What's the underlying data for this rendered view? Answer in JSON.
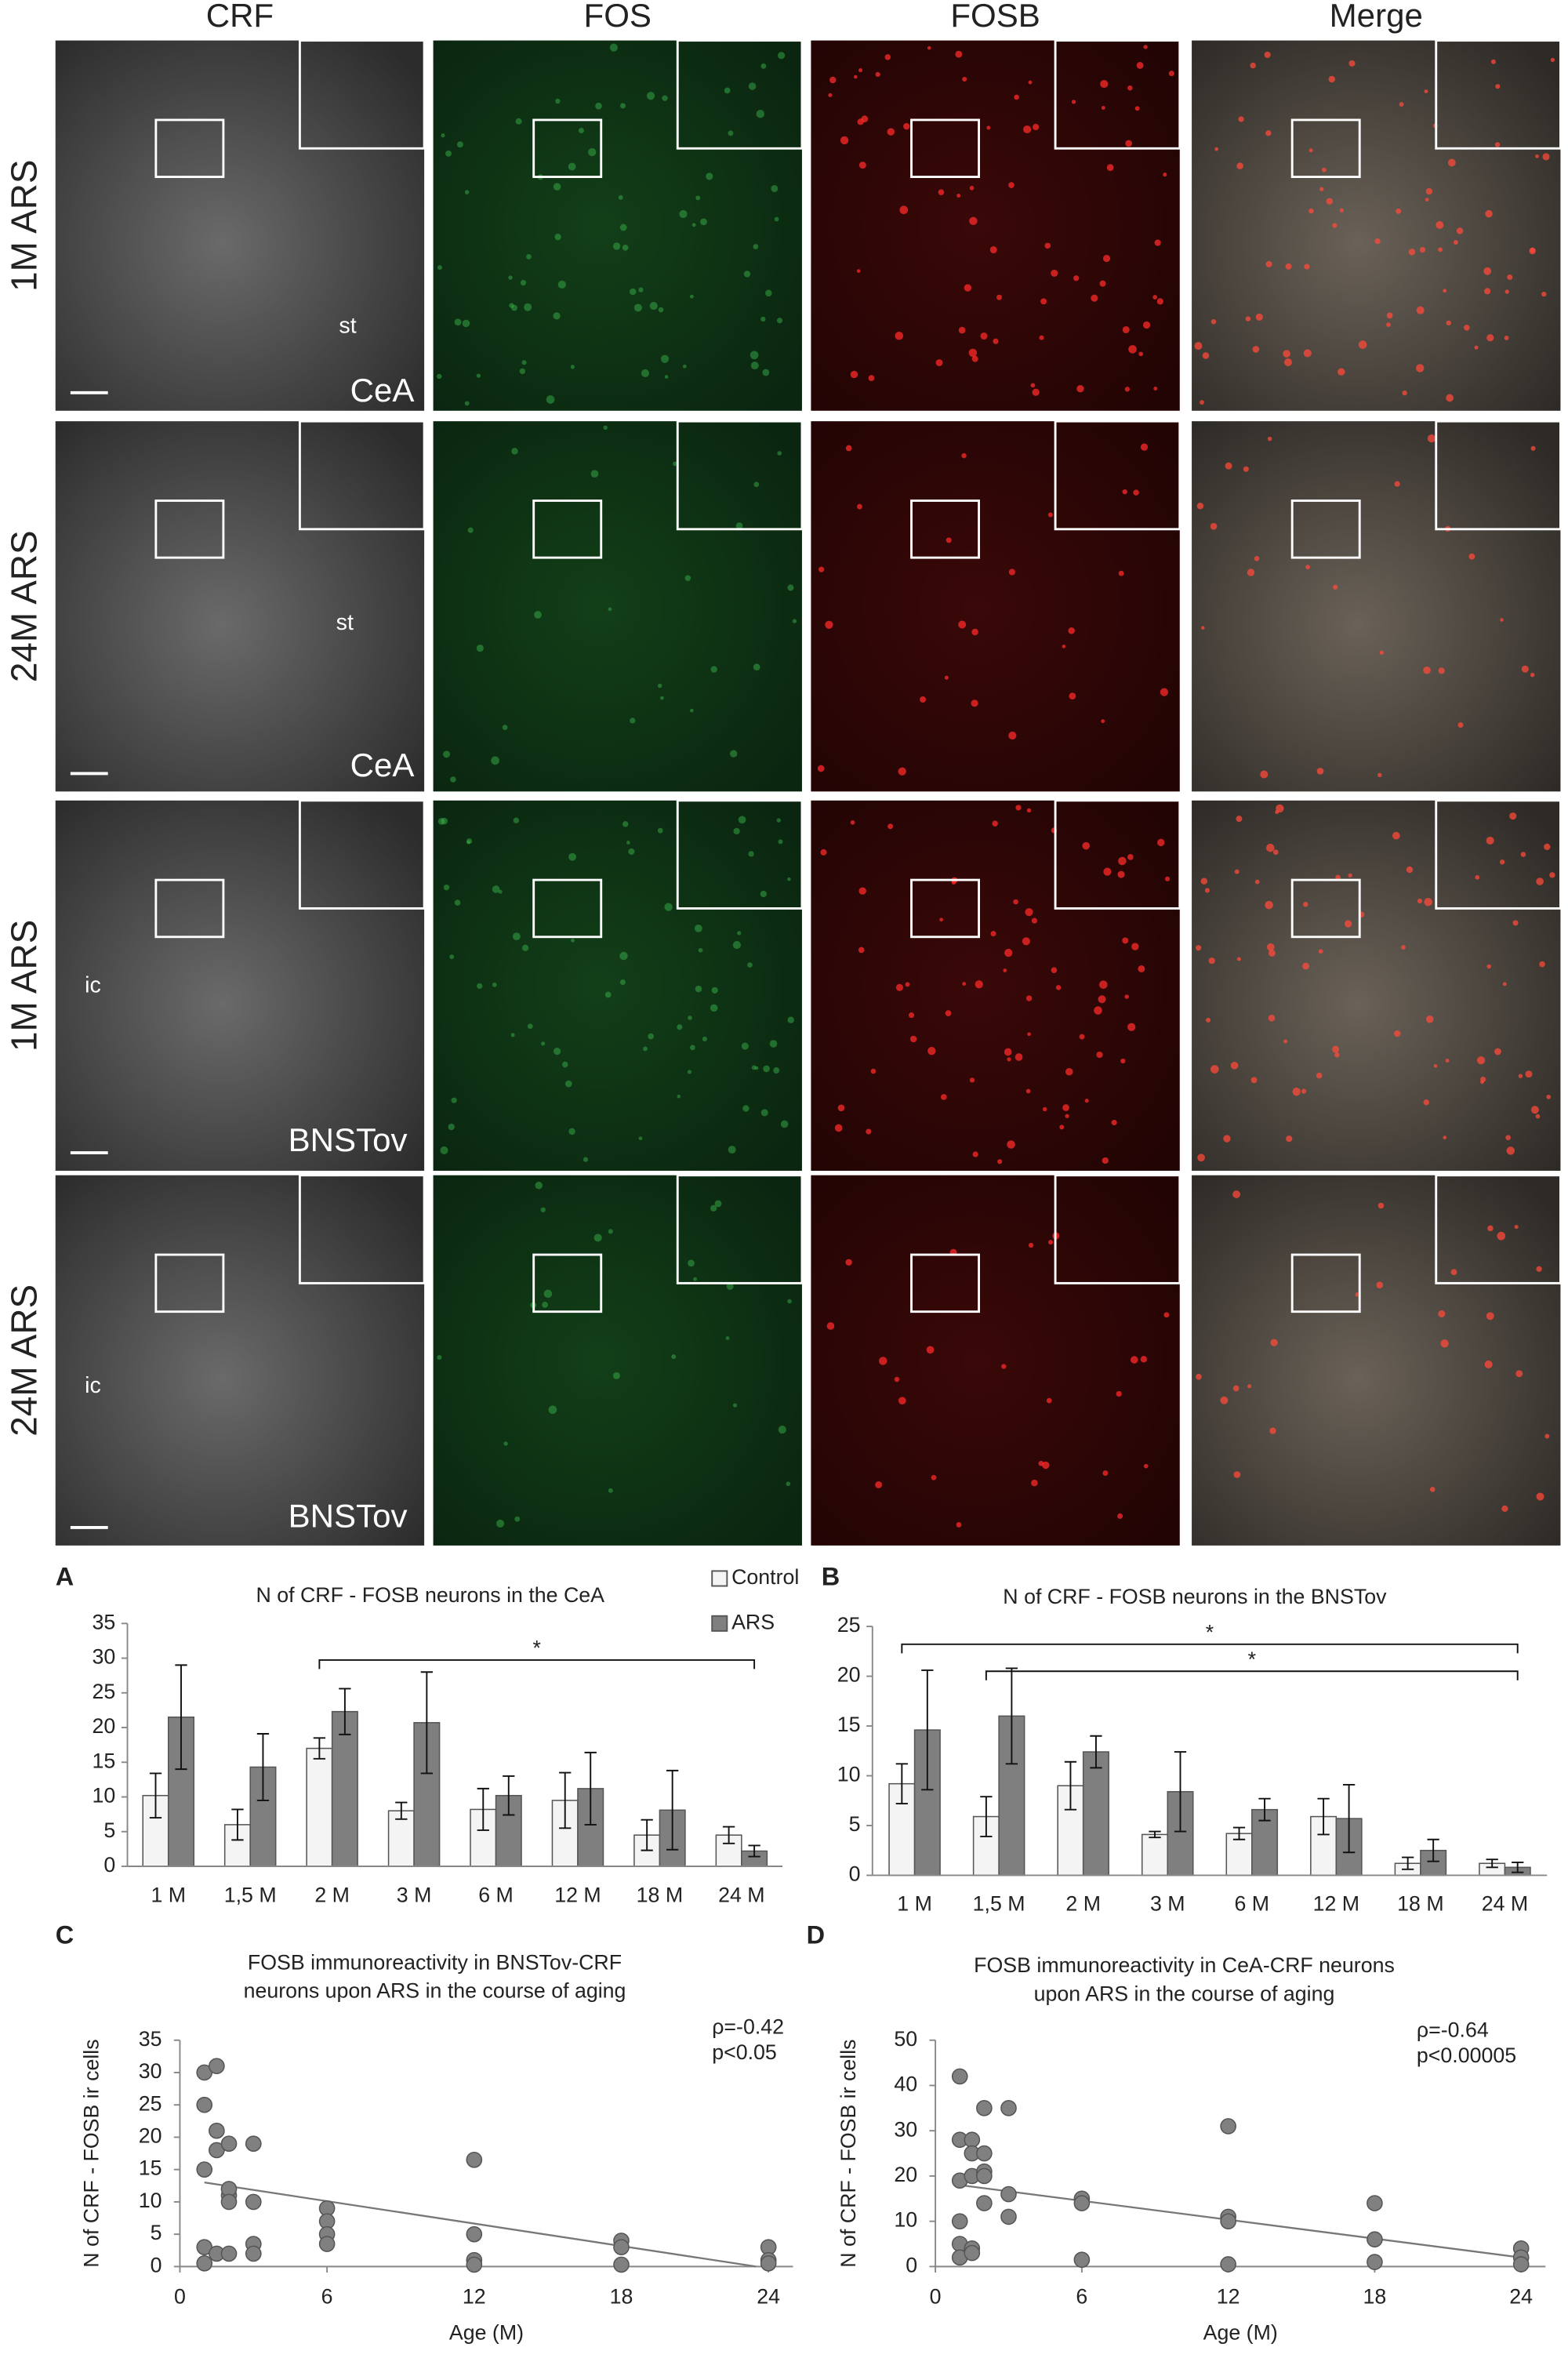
{
  "micrographs": {
    "columns": [
      "CRF",
      "FOS",
      "FOSB",
      "Merge"
    ],
    "rows": [
      "1M ARS",
      "24M ARS",
      "1M ARS",
      "24M ARS"
    ],
    "panel_labels": [
      [
        "st",
        "CeA"
      ],
      [
        "st",
        "CeA"
      ],
      [
        "ic",
        "BNSTov"
      ],
      [
        "ic",
        "BNSTov"
      ]
    ]
  },
  "chart_data": [
    {
      "type": "bar",
      "panel": "A",
      "title": "N of CRF - FOSB neurons in the CeA",
      "categories": [
        "1 M",
        "1,5 M",
        "2 M",
        "3 M",
        "6 M",
        "12 M",
        "18 M",
        "24 M"
      ],
      "series": [
        {
          "name": "Control",
          "color": "#f4f4f4",
          "values": [
            10.2,
            6,
            17,
            8,
            8.2,
            9.5,
            4.5,
            4.5
          ],
          "errors": [
            3.2,
            2.2,
            1.5,
            1.2,
            3,
            4,
            2.2,
            1.2
          ]
        },
        {
          "name": "ARS",
          "color": "#7f7f7f",
          "values": [
            21.5,
            14.3,
            22.3,
            20.7,
            10.2,
            11.2,
            8.1,
            2.2
          ],
          "errors": [
            7.5,
            4.8,
            3.3,
            7.3,
            2.8,
            5.2,
            5.7,
            0.8
          ]
        }
      ],
      "ylim": [
        0,
        35
      ],
      "yticks": [
        0,
        5,
        10,
        15,
        20,
        25,
        30,
        35
      ],
      "legend": true,
      "significance": [
        {
          "text": "*",
          "from": "2 M",
          "to": "24 M"
        }
      ]
    },
    {
      "type": "bar",
      "panel": "B",
      "title": "N of CRF - FOSB neurons in the BNSTov",
      "categories": [
        "1 M",
        "1,5 M",
        "2 M",
        "3 M",
        "6 M",
        "12 M",
        "18 M",
        "24 M"
      ],
      "series": [
        {
          "name": "Control",
          "color": "#f4f4f4",
          "values": [
            9.2,
            5.9,
            9,
            4.1,
            4.2,
            5.9,
            1.2,
            1.2
          ],
          "errors": [
            2,
            2,
            2.4,
            0.3,
            0.6,
            1.8,
            0.6,
            0.4
          ]
        },
        {
          "name": "ARS",
          "color": "#7f7f7f",
          "values": [
            14.6,
            16,
            12.4,
            8.4,
            6.6,
            5.7,
            2.5,
            0.8
          ],
          "errors": [
            6,
            4.8,
            1.6,
            4,
            1.1,
            3.4,
            1.1,
            0.5
          ]
        }
      ],
      "ylim": [
        0,
        25
      ],
      "yticks": [
        0,
        5,
        10,
        15,
        20,
        25
      ],
      "legend": false,
      "significance": [
        {
          "text": "*",
          "from": "1 M",
          "to": "24 M"
        },
        {
          "text": "*",
          "from": "1,5 M",
          "to": "24 M"
        }
      ]
    },
    {
      "type": "scatter",
      "panel": "C",
      "title": [
        "FOSB immunoreactivity in BNSTov-CRF",
        "neurons upon ARS in the course of aging"
      ],
      "x_label": "Age (M)",
      "y_label": "N of CRF - FOSB ir cells",
      "color": "#808080",
      "x": [
        1,
        1,
        1,
        1,
        1,
        1.5,
        1.5,
        1.5,
        1.5,
        2,
        2,
        2,
        2,
        2,
        3,
        3,
        3,
        3,
        6,
        6,
        6,
        6,
        12,
        12,
        12,
        12,
        18,
        18,
        18,
        24,
        24,
        24
      ],
      "values": [
        30,
        25,
        15,
        3,
        0.5,
        31,
        21,
        18,
        2,
        19,
        11,
        12,
        10,
        2,
        19,
        10,
        3.5,
        2,
        9,
        7,
        5,
        3.5,
        16.5,
        5,
        1,
        0.3,
        4,
        3,
        0.3,
        3,
        1,
        0.5
      ],
      "trend_x": [
        1,
        23.5
      ],
      "trend_y": [
        13,
        0
      ],
      "xlim": [
        0,
        25
      ],
      "xticks": [
        0,
        6,
        12,
        18,
        24
      ],
      "ylim": [
        0,
        35
      ],
      "yticks": [
        0,
        5,
        10,
        15,
        20,
        25,
        30,
        35
      ],
      "annotations": [
        "ρ=-0.42",
        "p<0.05"
      ]
    },
    {
      "type": "scatter",
      "panel": "D",
      "title": [
        "FOSB immunoreactivity in CeA-CRF neurons",
        "upon ARS in the course of aging"
      ],
      "x_label": "Age (M)",
      "y_label": "N of CRF - FOSB ir cells",
      "color": "#808080",
      "x": [
        1,
        1,
        1,
        1,
        1,
        1,
        1.5,
        1.5,
        1.5,
        1.5,
        1.5,
        2,
        2,
        2,
        2,
        2,
        3,
        3,
        3,
        6,
        6,
        6,
        12,
        12,
        12,
        12,
        18,
        18,
        18,
        24,
        24,
        24
      ],
      "values": [
        42,
        28,
        19,
        10,
        5,
        2,
        28,
        25,
        20,
        4,
        3,
        35,
        25,
        21,
        14,
        20,
        35,
        16,
        11,
        15,
        14,
        1.5,
        31,
        11,
        10,
        0.5,
        14,
        6,
        1,
        4,
        2,
        0.5
      ],
      "trend_x": [
        1,
        24
      ],
      "trend_y": [
        18,
        2
      ],
      "xlim": [
        0,
        25
      ],
      "xticks": [
        0,
        6,
        12,
        18,
        24
      ],
      "ylim": [
        0,
        50
      ],
      "yticks": [
        0,
        10,
        20,
        30,
        40,
        50
      ],
      "annotations": [
        "ρ=-0.64",
        "p<0.00005"
      ]
    }
  ]
}
